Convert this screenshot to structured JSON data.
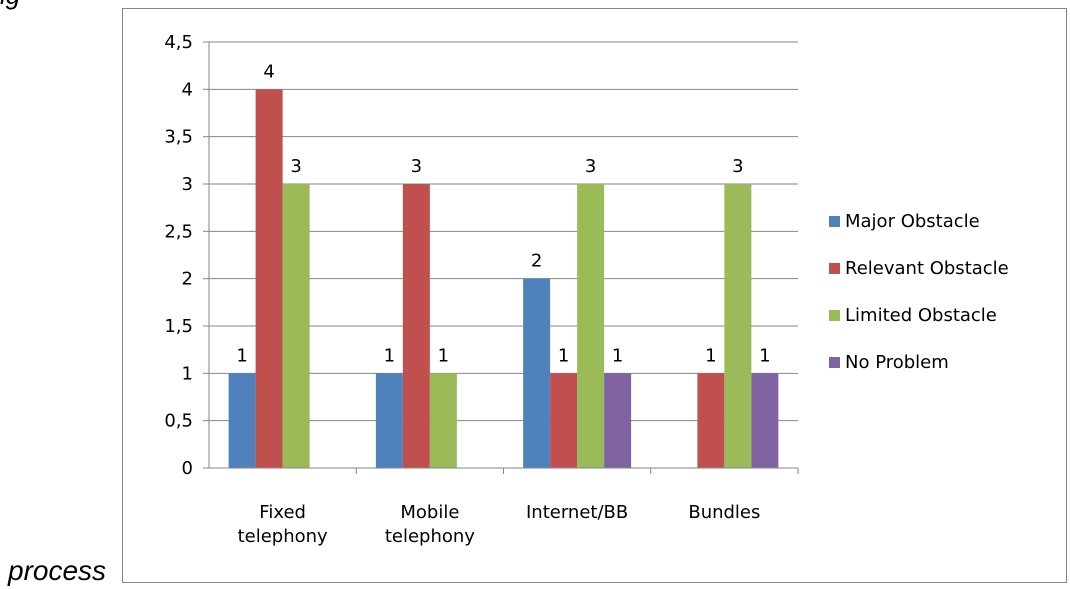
{
  "page": {
    "top_text": "ig",
    "process_text": "process"
  },
  "chart_data": {
    "type": "bar",
    "categories": [
      "Fixed\ntelephony",
      "Mobile\ntelephony",
      "Internet/BB",
      "Bundles"
    ],
    "series": [
      {
        "name": "Major Obstacle",
        "color": "#4F81BD",
        "values": [
          1,
          1,
          2,
          null
        ]
      },
      {
        "name": "Relevant Obstacle",
        "color": "#C0504D",
        "values": [
          4,
          3,
          1,
          1
        ]
      },
      {
        "name": "Limited Obstacle",
        "color": "#9BBB59",
        "values": [
          3,
          1,
          3,
          3
        ]
      },
      {
        "name": "No Problem",
        "color": "#8064A2",
        "values": [
          null,
          null,
          1,
          1
        ]
      }
    ],
    "ylim": [
      0,
      4.5
    ],
    "yticks": [
      "0",
      "0,5",
      "1",
      "1,5",
      "2",
      "2,5",
      "3",
      "3,5",
      "4",
      "4,5"
    ],
    "grid": true,
    "legend_position": "right",
    "title": "",
    "xlabel": "",
    "ylabel": ""
  }
}
